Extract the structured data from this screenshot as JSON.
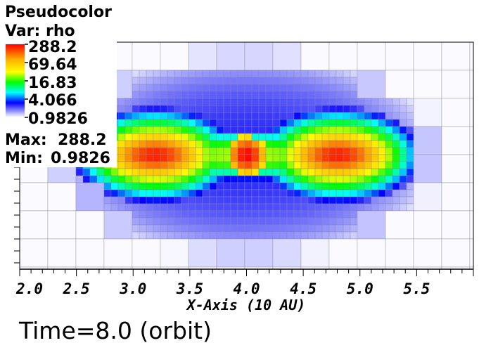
{
  "chart_data": {
    "type": "heatmap",
    "plot_type": "Pseudocolor",
    "variable_label": "Var: rho",
    "colorbar": {
      "scale": "log",
      "tick_labels": [
        "288.2",
        "69.64",
        "16.83",
        "4.066",
        "0.9826"
      ],
      "colors": [
        "#ff0000",
        "#ffff00",
        "#00ff00",
        "#00ffff",
        "#0000ff",
        "#ffffff"
      ]
    },
    "max_label": "Max:",
    "max_value": "288.2",
    "min_label": "Min:",
    "min_value": "0.9826",
    "xlim": [
      2.0,
      6.0
    ],
    "x_ticks": [
      "2.0",
      "2.5",
      "3.0",
      "3.5",
      "4.0",
      "4.5",
      "5.0",
      "5.5"
    ],
    "x_tick_values": [
      2.0,
      2.5,
      3.0,
      3.5,
      4.0,
      4.5,
      5.0,
      5.5
    ],
    "xlabel": "X-Axis (10 AU)",
    "ylabel": "",
    "field_peaks": [
      {
        "x": 4.0,
        "value": 288.2
      },
      {
        "x": 3.2,
        "value": 120.0
      },
      {
        "x": 4.8,
        "value": 120.0
      }
    ],
    "grid_lines": true
  },
  "annotation": {
    "time_text": "Time=8.0 (orbit)"
  }
}
